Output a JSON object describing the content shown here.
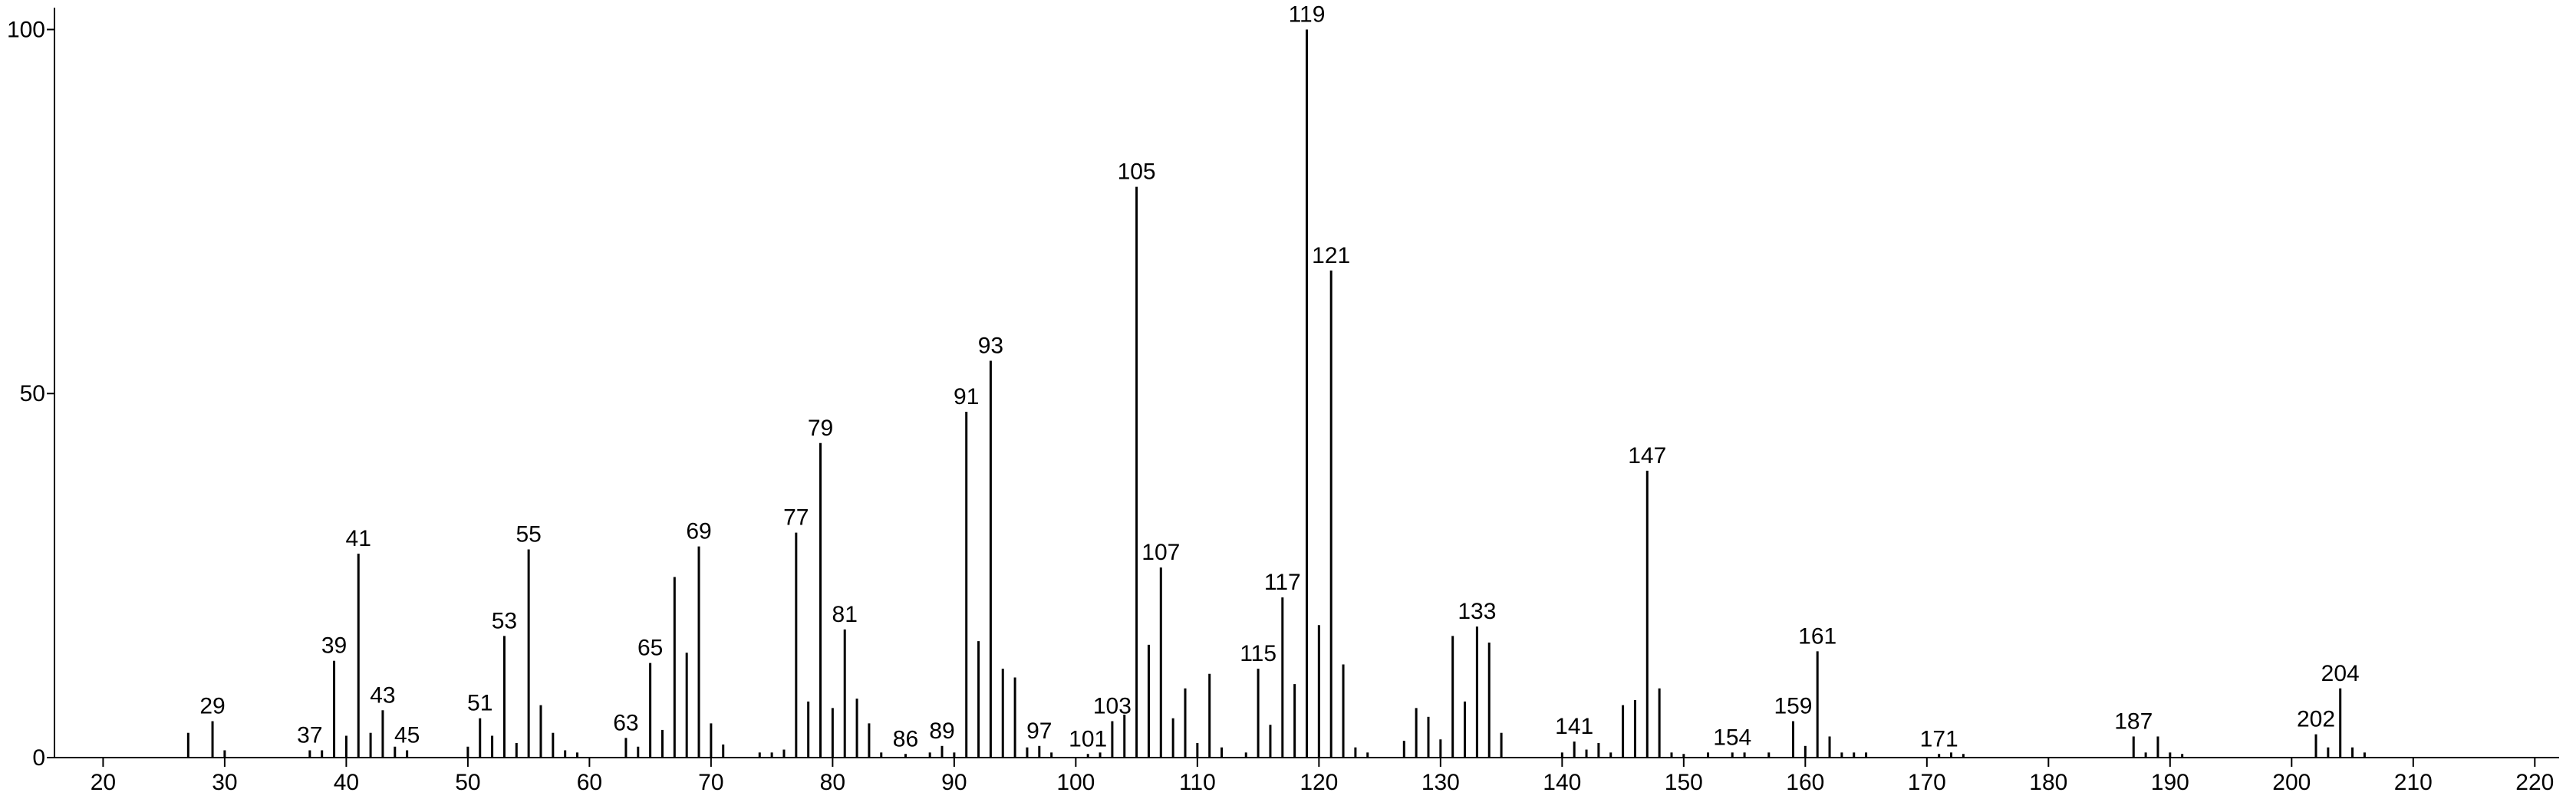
{
  "chart_data": {
    "type": "stem",
    "x": [
      27,
      29,
      30,
      37,
      38,
      39,
      40,
      41,
      42,
      43,
      44,
      45,
      50,
      51,
      52,
      53,
      54,
      55,
      56,
      57,
      58,
      59,
      63,
      64,
      65,
      66,
      67,
      68,
      69,
      70,
      71,
      74,
      75,
      76,
      77,
      78,
      79,
      80,
      81,
      82,
      83,
      84,
      86,
      88,
      89,
      90,
      91,
      92,
      93,
      94,
      95,
      96,
      97,
      98,
      101,
      102,
      103,
      104,
      105,
      106,
      107,
      108,
      109,
      110,
      111,
      112,
      114,
      115,
      116,
      117,
      118,
      119,
      120,
      121,
      122,
      123,
      124,
      127,
      128,
      129,
      130,
      131,
      132,
      133,
      134,
      135,
      140,
      141,
      142,
      143,
      144,
      145,
      146,
      147,
      148,
      149,
      150,
      152,
      154,
      155,
      157,
      159,
      160,
      161,
      162,
      163,
      164,
      165,
      171,
      172,
      173,
      187,
      188,
      189,
      190,
      191,
      202,
      203,
      204,
      205,
      206
    ],
    "values": [
      3.4,
      5,
      1,
      1,
      1,
      13.3,
      3,
      28,
      3.4,
      6.5,
      1.5,
      1,
      1.5,
      5.4,
      3,
      16.7,
      2,
      28.6,
      7.2,
      3.4,
      1,
      0.7,
      2.7,
      1.5,
      13,
      3.8,
      24.8,
      14.4,
      29,
      4.7,
      1.8,
      0.7,
      0.7,
      1.1,
      30.9,
      7.7,
      43.2,
      6.8,
      17.6,
      8.1,
      4.7,
      0.7,
      0.5,
      0.7,
      1.6,
      0.7,
      47.5,
      16,
      54.5,
      12.2,
      11,
      1.4,
      1.6,
      0.7,
      0.5,
      0.7,
      5,
      5.9,
      78.4,
      15.5,
      26.1,
      5.4,
      9.5,
      2,
      11.5,
      1.4,
      0.7,
      12.2,
      4.5,
      22,
      10.1,
      100,
      18.2,
      66.9,
      12.8,
      1.4,
      0.7,
      2.3,
      6.8,
      5.6,
      2.5,
      16.7,
      7.7,
      18,
      15.8,
      3.4,
      0.7,
      2.2,
      1.1,
      2,
      0.7,
      7.2,
      7.9,
      39.4,
      9.5,
      0.7,
      0.5,
      0.7,
      0.7,
      0.7,
      0.7,
      5,
      1.6,
      14.6,
      2.9,
      0.7,
      0.7,
      0.7,
      0.5,
      0.7,
      0.5,
      2.9,
      0.7,
      2.9,
      0.7,
      0.5,
      3.2,
      1.4,
      9.5,
      1.4,
      0.7
    ],
    "labeled_x": [
      29,
      37,
      39,
      41,
      43,
      45,
      51,
      53,
      55,
      63,
      65,
      69,
      77,
      79,
      81,
      86,
      89,
      91,
      93,
      97,
      101,
      103,
      105,
      107,
      115,
      117,
      119,
      121,
      133,
      141,
      147,
      154,
      159,
      161,
      171,
      187,
      202,
      204
    ],
    "color": "#000000",
    "xlim": [
      16,
      222
    ],
    "ylim": [
      0,
      103
    ],
    "xticks": [
      20,
      30,
      40,
      50,
      60,
      70,
      80,
      90,
      100,
      110,
      120,
      130,
      140,
      150,
      160,
      170,
      180,
      190,
      200,
      210,
      220
    ],
    "yticks": [
      0,
      50,
      100
    ]
  }
}
